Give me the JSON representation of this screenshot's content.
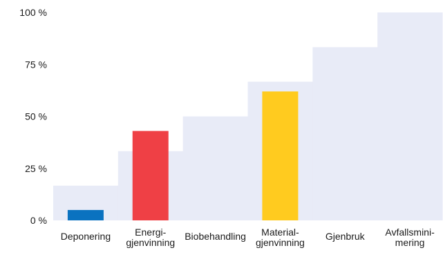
{
  "chart_data": {
    "type": "bar",
    "title": "",
    "xlabel": "",
    "ylabel": "",
    "ylim": [
      0,
      100
    ],
    "y_ticks": [
      {
        "value": 0,
        "label": "0 %"
      },
      {
        "value": 25,
        "label": "25 %"
      },
      {
        "value": 50,
        "label": "50 %"
      },
      {
        "value": 75,
        "label": "75 %"
      },
      {
        "value": 100,
        "label": "100 %"
      }
    ],
    "grid": false,
    "legend": "none",
    "categories": [
      {
        "lines": [
          "Deponering"
        ]
      },
      {
        "lines": [
          "Energi-",
          "gjenvinning"
        ]
      },
      {
        "lines": [
          "Biobehandling"
        ]
      },
      {
        "lines": [
          "Material-",
          "gjenvinning"
        ]
      },
      {
        "lines": [
          "Gjenbruk"
        ]
      },
      {
        "lines": [
          "Avfallsmini-",
          "mering"
        ]
      }
    ],
    "background_steps": [
      16.7,
      33.3,
      50,
      66.7,
      83.3,
      100
    ],
    "values": [
      5,
      43,
      null,
      62,
      null,
      null
    ],
    "bar_colors": [
      "#0a72c0",
      "#ef4045",
      null,
      "#ffcb1f",
      null,
      null
    ],
    "step_color": "#e8ebf7"
  }
}
